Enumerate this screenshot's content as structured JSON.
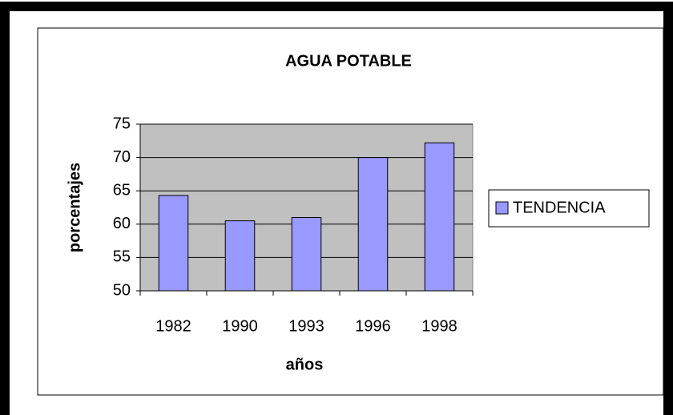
{
  "chart_data": {
    "type": "bar",
    "title": "AGUA POTABLE",
    "x_label": "años",
    "y_label": "porcentajes",
    "categories": [
      "1982",
      "1990",
      "1993",
      "1996",
      "1998"
    ],
    "series": [
      {
        "name": "TENDENCIA",
        "color": "#9999ff",
        "values": [
          64.3,
          60.5,
          61,
          70,
          72.2
        ]
      }
    ],
    "ylim": [
      50,
      75
    ],
    "yticks": [
      50,
      55,
      60,
      65,
      70,
      75
    ],
    "grid": true,
    "legend": "right"
  }
}
